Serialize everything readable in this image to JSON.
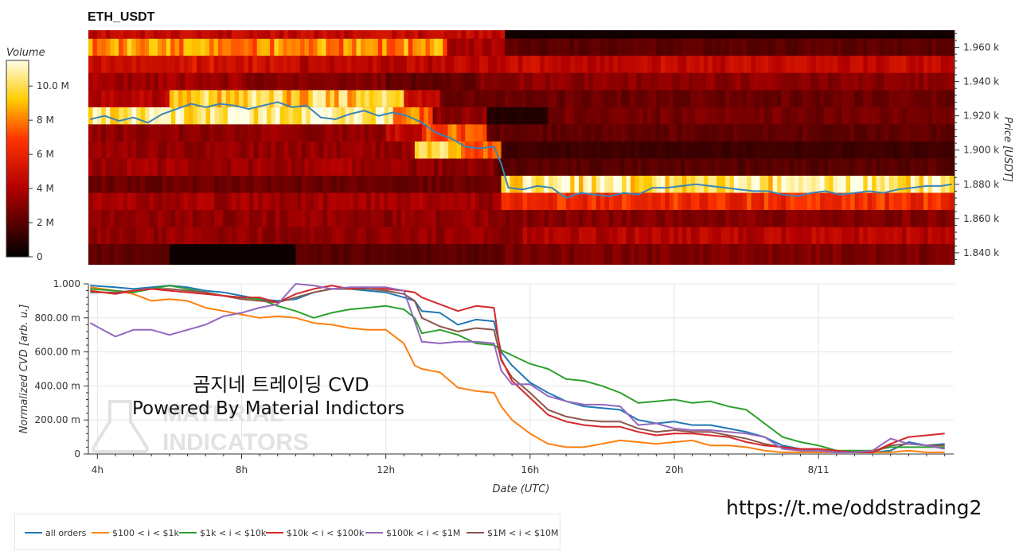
{
  "heatmap_title": "ETH_USDT",
  "colorbar": {
    "label": "Volume",
    "ticks": [
      "0",
      "2 M",
      "4 M",
      "6 M",
      "8 M",
      "10.0 M"
    ],
    "range": [
      0,
      11.5
    ]
  },
  "overlay": {
    "title": "곰지네 트레이딩 CVD",
    "subtitle": "Powered By Material Indictors",
    "watermark_line1": "MATERIAL",
    "watermark_line2": "INDICATORS",
    "telegram_link": "https://t.me/oddstrading2"
  },
  "colors": {
    "all_orders": "#1f77b4",
    "b100_1k": "#ff7f0e",
    "b1k_10k": "#2ca02c",
    "b10k_100k": "#d62728",
    "b100k_1m": "#9467bd",
    "b1m_10m": "#8c564b"
  },
  "chart_data": [
    {
      "type": "heatmap",
      "title": "ETH_USDT",
      "ylabel": "Price [USDT]",
      "y_ticks": [
        "1.840 k",
        "1.860 k",
        "1.880 k",
        "1.900 k",
        "1.920 k",
        "1.940 k",
        "1.960 k"
      ],
      "y_tick_values": [
        1840,
        1860,
        1880,
        1900,
        1920,
        1940,
        1960
      ],
      "ylim": [
        1833,
        1970
      ],
      "x_range_hours": [
        3.75,
        27.75
      ],
      "colorbar_label": "Volume",
      "zlim_millions": [
        0,
        11.5
      ],
      "price_line": {
        "x": [
          3.8,
          4.2,
          4.6,
          5.0,
          5.4,
          5.8,
          6.2,
          6.6,
          7.0,
          7.4,
          7.8,
          8.2,
          8.6,
          9.0,
          9.4,
          9.8,
          10.2,
          10.6,
          11.0,
          11.4,
          11.8,
          12.2,
          12.6,
          13.0,
          13.4,
          13.8,
          14.2,
          14.6,
          15.0,
          15.2,
          15.4,
          15.8,
          16.2,
          16.6,
          17.0,
          17.4,
          17.8,
          18.2,
          18.6,
          19.0,
          19.4,
          19.8,
          20.2,
          20.6,
          21.0,
          21.4,
          21.8,
          22.2,
          22.6,
          23.0,
          23.4,
          23.8,
          24.2,
          24.6,
          25.0,
          25.4,
          25.8,
          26.2,
          26.6,
          27.0,
          27.4,
          27.7
        ],
        "y": [
          1918,
          1920,
          1917,
          1919,
          1916,
          1921,
          1924,
          1927,
          1925,
          1927,
          1926,
          1924,
          1926,
          1928,
          1925,
          1926,
          1919,
          1918,
          1921,
          1923,
          1920,
          1922,
          1920,
          1916,
          1910,
          1907,
          1902,
          1901,
          1902,
          1892,
          1878,
          1877,
          1879,
          1878,
          1872,
          1875,
          1874,
          1873,
          1875,
          1874,
          1878,
          1878,
          1879,
          1880,
          1879,
          1878,
          1877,
          1876,
          1876,
          1874,
          1873,
          1875,
          1876,
          1874,
          1875,
          1876,
          1875,
          1877,
          1878,
          1879,
          1879,
          1880
        ]
      },
      "bands": [
        {
          "y0": 1965,
          "y1": 1970,
          "segments": [
            [
              3.75,
              15.3,
              4.5
            ],
            [
              15.3,
              27.75,
              0.4
            ]
          ]
        },
        {
          "y0": 1955,
          "y1": 1965,
          "segments": [
            [
              3.75,
              13.7,
              8.2
            ],
            [
              13.7,
              15.3,
              3.8
            ],
            [
              15.3,
              27.75,
              2.1
            ]
          ]
        },
        {
          "y0": 1945,
          "y1": 1955,
          "segments": [
            [
              3.75,
              5.8,
              4.6
            ],
            [
              5.8,
              9.5,
              5.2
            ],
            [
              9.5,
              14.0,
              4.3
            ],
            [
              14.0,
              27.75,
              4.6
            ]
          ]
        },
        {
          "y0": 1935,
          "y1": 1945,
          "segments": [
            [
              3.75,
              8.0,
              3.6
            ],
            [
              8.0,
              12.0,
              3.0
            ],
            [
              12.0,
              14.5,
              2.2
            ],
            [
              14.5,
              27.75,
              3.1
            ]
          ]
        },
        {
          "y0": 1925,
          "y1": 1935,
          "segments": [
            [
              3.75,
              6.0,
              4.2
            ],
            [
              6.0,
              12.5,
              9.5
            ],
            [
              12.5,
              13.5,
              4.8
            ],
            [
              13.5,
              27.75,
              2.4
            ]
          ]
        },
        {
          "y0": 1915,
          "y1": 1925,
          "segments": [
            [
              3.75,
              12.2,
              10.7
            ],
            [
              12.2,
              13.3,
              7.6
            ],
            [
              13.3,
              14.8,
              3.2
            ],
            [
              14.8,
              16.5,
              0.8
            ],
            [
              16.5,
              27.75,
              2.6
            ]
          ]
        },
        {
          "y0": 1905,
          "y1": 1915,
          "segments": [
            [
              3.75,
              12.0,
              3.2
            ],
            [
              12.0,
              13.0,
              4.6
            ],
            [
              13.0,
              14.8,
              7.4
            ],
            [
              14.8,
              27.75,
              2.2
            ]
          ]
        },
        {
          "y0": 1895,
          "y1": 1905,
          "segments": [
            [
              3.75,
              12.8,
              3.3
            ],
            [
              12.8,
              14.2,
              9.2
            ],
            [
              14.2,
              15.2,
              7.8
            ],
            [
              15.2,
              27.75,
              1.4
            ]
          ]
        },
        {
          "y0": 1885,
          "y1": 1895,
          "segments": [
            [
              3.75,
              12.5,
              3.6
            ],
            [
              12.5,
              15.0,
              3.2
            ],
            [
              15.0,
              27.75,
              2.0
            ]
          ]
        },
        {
          "y0": 1875,
          "y1": 1885,
          "segments": [
            [
              3.75,
              15.2,
              2.4
            ],
            [
              15.2,
              27.75,
              10.3
            ]
          ]
        },
        {
          "y0": 1865,
          "y1": 1875,
          "segments": [
            [
              3.75,
              15.2,
              3.6
            ],
            [
              15.2,
              27.75,
              6.4
            ]
          ]
        },
        {
          "y0": 1855,
          "y1": 1865,
          "segments": [
            [
              3.75,
              15.2,
              3.3
            ],
            [
              15.2,
              27.75,
              3.0
            ]
          ]
        },
        {
          "y0": 1845,
          "y1": 1855,
          "segments": [
            [
              3.75,
              15.8,
              3.3
            ],
            [
              15.8,
              27.75,
              4.2
            ]
          ]
        },
        {
          "y0": 1833,
          "y1": 1845,
          "segments": [
            [
              3.75,
              6.0,
              2.2
            ],
            [
              6.0,
              9.5,
              0.3
            ],
            [
              9.5,
              15.3,
              2.0
            ],
            [
              15.3,
              27.75,
              2.8
            ]
          ]
        }
      ]
    },
    {
      "type": "line",
      "xlabel": "Date (UTC)",
      "ylabel": "Normalized CVD [arb. u.]",
      "x_ticks": [
        "4h",
        "8h",
        "12h",
        "16h",
        "20h",
        "8/11"
      ],
      "x_tick_values": [
        4,
        8,
        12,
        16,
        20,
        24
      ],
      "xlim": [
        3.75,
        27.75
      ],
      "y_ticks": [
        "0",
        "200.00 m",
        "400.00 m",
        "600.00 m",
        "800.00 m",
        "1.000"
      ],
      "y_tick_values": [
        0,
        0.2,
        0.4,
        0.6,
        0.8,
        1.0
      ],
      "ylim": [
        0,
        1.0
      ],
      "grid": true,
      "legend_position": "bottom",
      "x": [
        3.8,
        4.5,
        5.0,
        5.5,
        6.0,
        6.5,
        7.0,
        7.5,
        8.0,
        8.5,
        9.0,
        9.5,
        10.0,
        10.5,
        11.0,
        11.5,
        12.0,
        12.5,
        12.8,
        13.0,
        13.5,
        14.0,
        14.5,
        15.0,
        15.2,
        15.5,
        16.0,
        16.5,
        17.0,
        17.5,
        18.0,
        18.5,
        19.0,
        19.5,
        20.0,
        20.5,
        21.0,
        21.5,
        22.0,
        22.5,
        23.0,
        23.5,
        24.0,
        24.5,
        25.0,
        25.5,
        26.0,
        26.5,
        27.0,
        27.5
      ],
      "series": [
        {
          "name": "all orders",
          "color": "#1f77b4",
          "values": [
            0.99,
            0.98,
            0.97,
            0.98,
            0.99,
            0.98,
            0.96,
            0.95,
            0.93,
            0.91,
            0.9,
            0.91,
            0.95,
            0.97,
            0.97,
            0.96,
            0.95,
            0.92,
            0.9,
            0.84,
            0.83,
            0.76,
            0.79,
            0.78,
            0.6,
            0.52,
            0.42,
            0.36,
            0.31,
            0.28,
            0.27,
            0.26,
            0.2,
            0.18,
            0.19,
            0.17,
            0.17,
            0.15,
            0.13,
            0.1,
            0.05,
            0.03,
            0.02,
            0.01,
            0.01,
            0.01,
            0.02,
            0.07,
            0.05,
            0.06
          ]
        },
        {
          "name": "$100 < i < $1k",
          "color": "#ff7f0e",
          "values": [
            0.98,
            0.96,
            0.94,
            0.9,
            0.91,
            0.9,
            0.86,
            0.84,
            0.82,
            0.8,
            0.81,
            0.8,
            0.77,
            0.76,
            0.74,
            0.73,
            0.73,
            0.65,
            0.52,
            0.5,
            0.48,
            0.39,
            0.37,
            0.36,
            0.28,
            0.2,
            0.12,
            0.06,
            0.04,
            0.04,
            0.06,
            0.08,
            0.07,
            0.06,
            0.07,
            0.08,
            0.05,
            0.05,
            0.04,
            0.02,
            0.01,
            0.01,
            0.01,
            0.01,
            0.01,
            0.01,
            0.01,
            0.02,
            0.01,
            0.01
          ]
        },
        {
          "name": "$1k < i < $10k",
          "color": "#2ca02c",
          "values": [
            0.97,
            0.96,
            0.95,
            0.97,
            0.99,
            0.97,
            0.95,
            0.93,
            0.92,
            0.91,
            0.87,
            0.84,
            0.8,
            0.83,
            0.85,
            0.86,
            0.87,
            0.85,
            0.8,
            0.71,
            0.73,
            0.7,
            0.65,
            0.64,
            0.61,
            0.58,
            0.53,
            0.5,
            0.44,
            0.43,
            0.4,
            0.36,
            0.3,
            0.31,
            0.32,
            0.3,
            0.31,
            0.28,
            0.26,
            0.18,
            0.1,
            0.07,
            0.05,
            0.02,
            0.02,
            0.02,
            0.04,
            0.04,
            0.04,
            0.04
          ]
        },
        {
          "name": "$10k < i < $100k",
          "color": "#d62728",
          "values": [
            0.96,
            0.94,
            0.96,
            0.97,
            0.96,
            0.95,
            0.94,
            0.93,
            0.92,
            0.92,
            0.89,
            0.94,
            0.97,
            0.99,
            0.97,
            0.98,
            0.97,
            0.96,
            0.95,
            0.92,
            0.88,
            0.84,
            0.87,
            0.86,
            0.56,
            0.43,
            0.33,
            0.23,
            0.19,
            0.17,
            0.16,
            0.16,
            0.13,
            0.11,
            0.12,
            0.12,
            0.11,
            0.1,
            0.07,
            0.05,
            0.04,
            0.03,
            0.03,
            0.02,
            0.01,
            0.01,
            0.06,
            0.1,
            0.11,
            0.12
          ]
        },
        {
          "name": "$100k < i < $1M",
          "color": "#9467bd",
          "values": [
            0.77,
            0.69,
            0.73,
            0.73,
            0.7,
            0.73,
            0.76,
            0.81,
            0.83,
            0.86,
            0.88,
            1.0,
            0.99,
            0.97,
            0.98,
            0.98,
            0.98,
            0.96,
            0.78,
            0.66,
            0.65,
            0.66,
            0.66,
            0.65,
            0.49,
            0.41,
            0.41,
            0.34,
            0.31,
            0.29,
            0.29,
            0.28,
            0.17,
            0.18,
            0.15,
            0.14,
            0.14,
            0.13,
            0.12,
            0.1,
            0.03,
            0.02,
            0.02,
            0.01,
            0.01,
            0.02,
            0.09,
            0.06,
            0.05,
            0.03
          ]
        },
        {
          "name": "$1M < i < $10M",
          "color": "#8c564b",
          "values": [
            0.95,
            0.95,
            0.96,
            0.97,
            0.97,
            0.96,
            0.95,
            0.93,
            0.91,
            0.9,
            0.89,
            0.92,
            0.95,
            0.97,
            0.97,
            0.97,
            0.96,
            0.94,
            0.9,
            0.8,
            0.75,
            0.72,
            0.74,
            0.73,
            0.55,
            0.45,
            0.36,
            0.26,
            0.22,
            0.2,
            0.19,
            0.19,
            0.15,
            0.13,
            0.14,
            0.13,
            0.13,
            0.11,
            0.09,
            0.06,
            0.04,
            0.02,
            0.02,
            0.01,
            0.01,
            0.01,
            0.05,
            0.06,
            0.05,
            0.05
          ]
        }
      ]
    }
  ]
}
